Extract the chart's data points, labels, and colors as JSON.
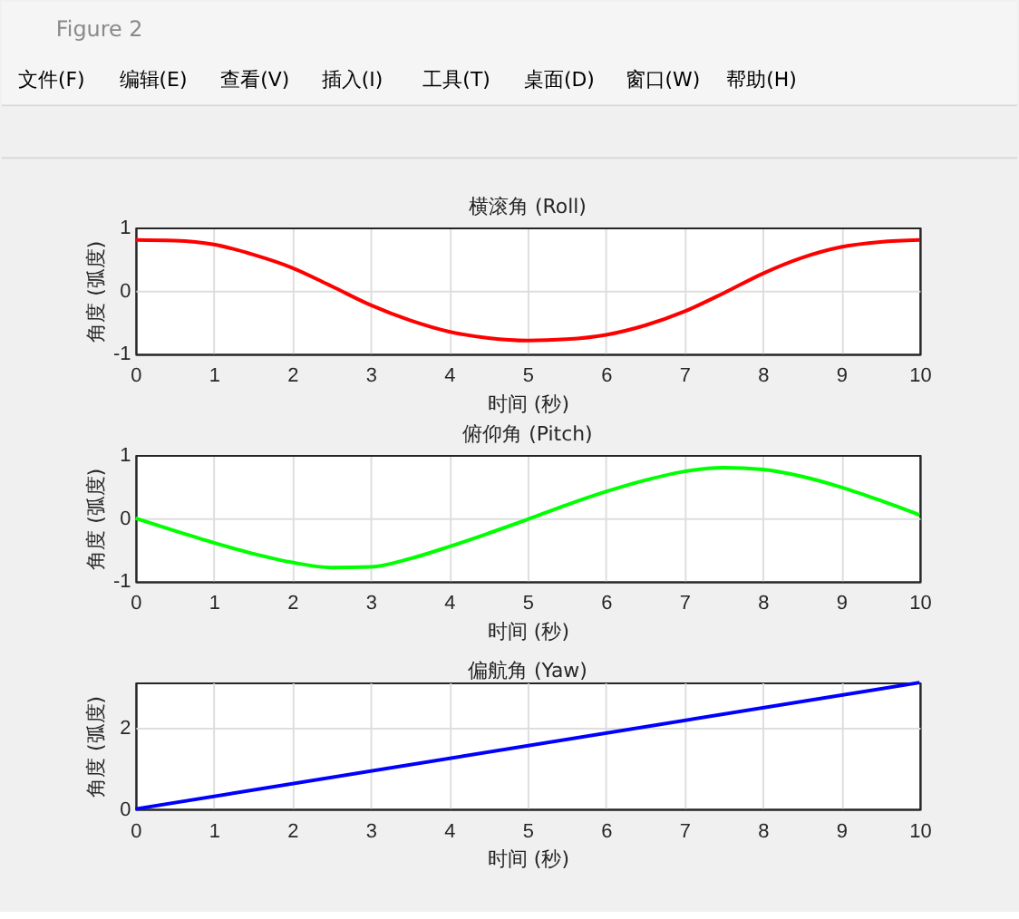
{
  "chart_data": [
    {
      "type": "other",
      "title": "Figure 2",
      "annotations": [
        "文件(F)",
        "编辑(E)",
        "查看(V)",
        "插入(I)",
        "工具(T)",
        "桌面(D)",
        "窗口(W)",
        "帮助(H)"
      ]
    },
    {
      "type": "line",
      "title": "横滚角 (Roll)",
      "xlabel": "时间 (秒)",
      "ylabel": "角度 (弧度)",
      "x": [
        0,
        0.5,
        1,
        1.5,
        2,
        2.5,
        3,
        3.5,
        4,
        4.5,
        5,
        5.5,
        6,
        6.5,
        7,
        7.5,
        8,
        8.5,
        9,
        9.5,
        10
      ],
      "series": [
        {
          "color": "#ff0000",
          "values": [
            0.8,
            0.79,
            0.73,
            0.57,
            0.36,
            0.07,
            -0.23,
            -0.47,
            -0.65,
            -0.75,
            -0.79,
            -0.77,
            -0.7,
            -0.55,
            -0.33,
            -0.04,
            0.27,
            0.52,
            0.69,
            0.77,
            0.8
          ]
        }
      ],
      "xlim": [
        0,
        10
      ],
      "ylim": [
        -1,
        1
      ],
      "xticks": [
        0,
        1,
        2,
        3,
        4,
        5,
        6,
        7,
        8,
        9,
        10
      ],
      "yticks": [
        -1,
        0,
        1
      ],
      "grid": true
    },
    {
      "type": "line",
      "title": "俯仰角 (Pitch)",
      "xlabel": "时间 (秒)",
      "ylabel": "角度 (弧度)",
      "x": [
        0,
        0.5,
        1,
        1.5,
        2,
        2.5,
        3,
        3.5,
        4,
        4.5,
        5,
        5.5,
        6,
        6.5,
        7,
        7.5,
        8,
        8.5,
        9,
        9.5,
        10
      ],
      "series": [
        {
          "color": "#00ff00",
          "values": [
            0.0,
            -0.2,
            -0.39,
            -0.56,
            -0.7,
            -0.78,
            -0.77,
            -0.64,
            -0.45,
            -0.24,
            -0.02,
            0.21,
            0.42,
            0.6,
            0.74,
            0.8,
            0.77,
            0.66,
            0.49,
            0.28,
            0.05
          ]
        }
      ],
      "xlim": [
        0,
        10
      ],
      "ylim": [
        -1,
        1
      ],
      "xticks": [
        0,
        1,
        2,
        3,
        4,
        5,
        6,
        7,
        8,
        9,
        10
      ],
      "yticks": [
        -1,
        0,
        1
      ],
      "grid": true
    },
    {
      "type": "line",
      "title": "偏航角 (Yaw)",
      "xlabel": "时间 (秒)",
      "ylabel": "角度 (弧度)",
      "x": [
        0,
        10
      ],
      "series": [
        {
          "color": "#0000ff",
          "values": [
            0,
            3.1
          ]
        }
      ],
      "xlim": [
        0,
        10
      ],
      "ylim": [
        0,
        3.1
      ],
      "xticks": [
        0,
        1,
        2,
        3,
        4,
        5,
        6,
        7,
        8,
        9,
        10
      ],
      "yticks": [
        0,
        2
      ],
      "grid": true
    }
  ]
}
